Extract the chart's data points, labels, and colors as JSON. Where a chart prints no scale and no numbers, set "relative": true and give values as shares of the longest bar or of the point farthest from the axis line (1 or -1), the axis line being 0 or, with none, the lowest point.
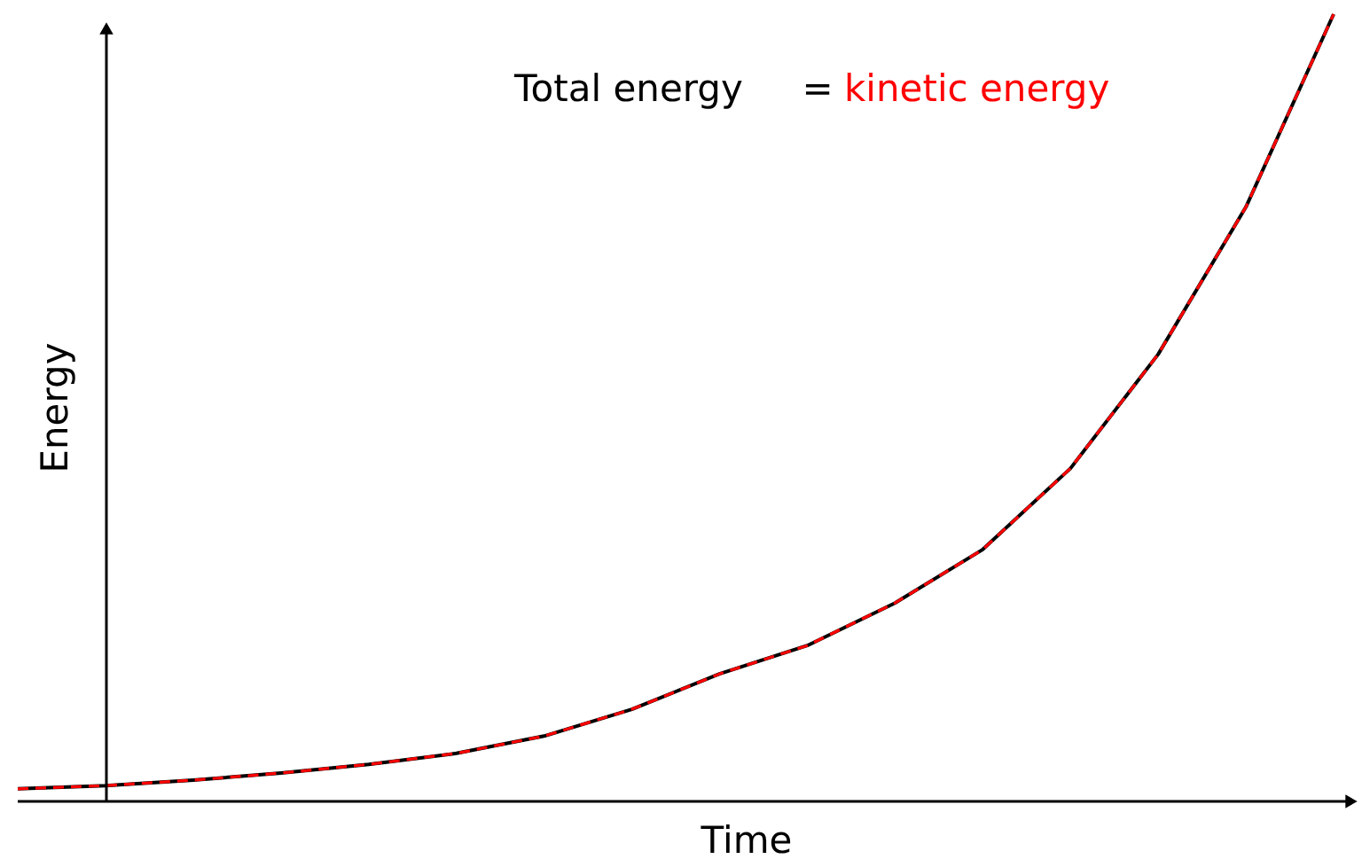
{
  "chart_data": {
    "type": "line",
    "relative": true,
    "xlabel": "Time",
    "ylabel": "Energy",
    "categories": [
      null,
      null,
      null,
      null,
      null,
      null,
      null,
      null,
      null,
      null,
      null,
      null,
      null,
      null,
      null,
      null
    ],
    "series": [
      {
        "name": "Total energy",
        "color": "#000000",
        "line_style": "solid",
        "values": [
          0.016,
          0.02,
          0.027,
          0.036,
          0.047,
          0.061,
          0.083,
          0.117,
          0.162,
          0.198,
          0.252,
          0.32,
          0.423,
          0.568,
          0.755,
          1.0
        ]
      },
      {
        "name": "kinetic energy",
        "color": "#ff0000",
        "line_style": "dashed",
        "values": [
          0.016,
          0.02,
          0.027,
          0.036,
          0.047,
          0.061,
          0.083,
          0.117,
          0.162,
          0.198,
          0.252,
          0.32,
          0.423,
          0.568,
          0.755,
          1.0
        ]
      }
    ],
    "annotations": [
      "="
    ],
    "legend": "top",
    "grid": false,
    "marker": "none"
  }
}
